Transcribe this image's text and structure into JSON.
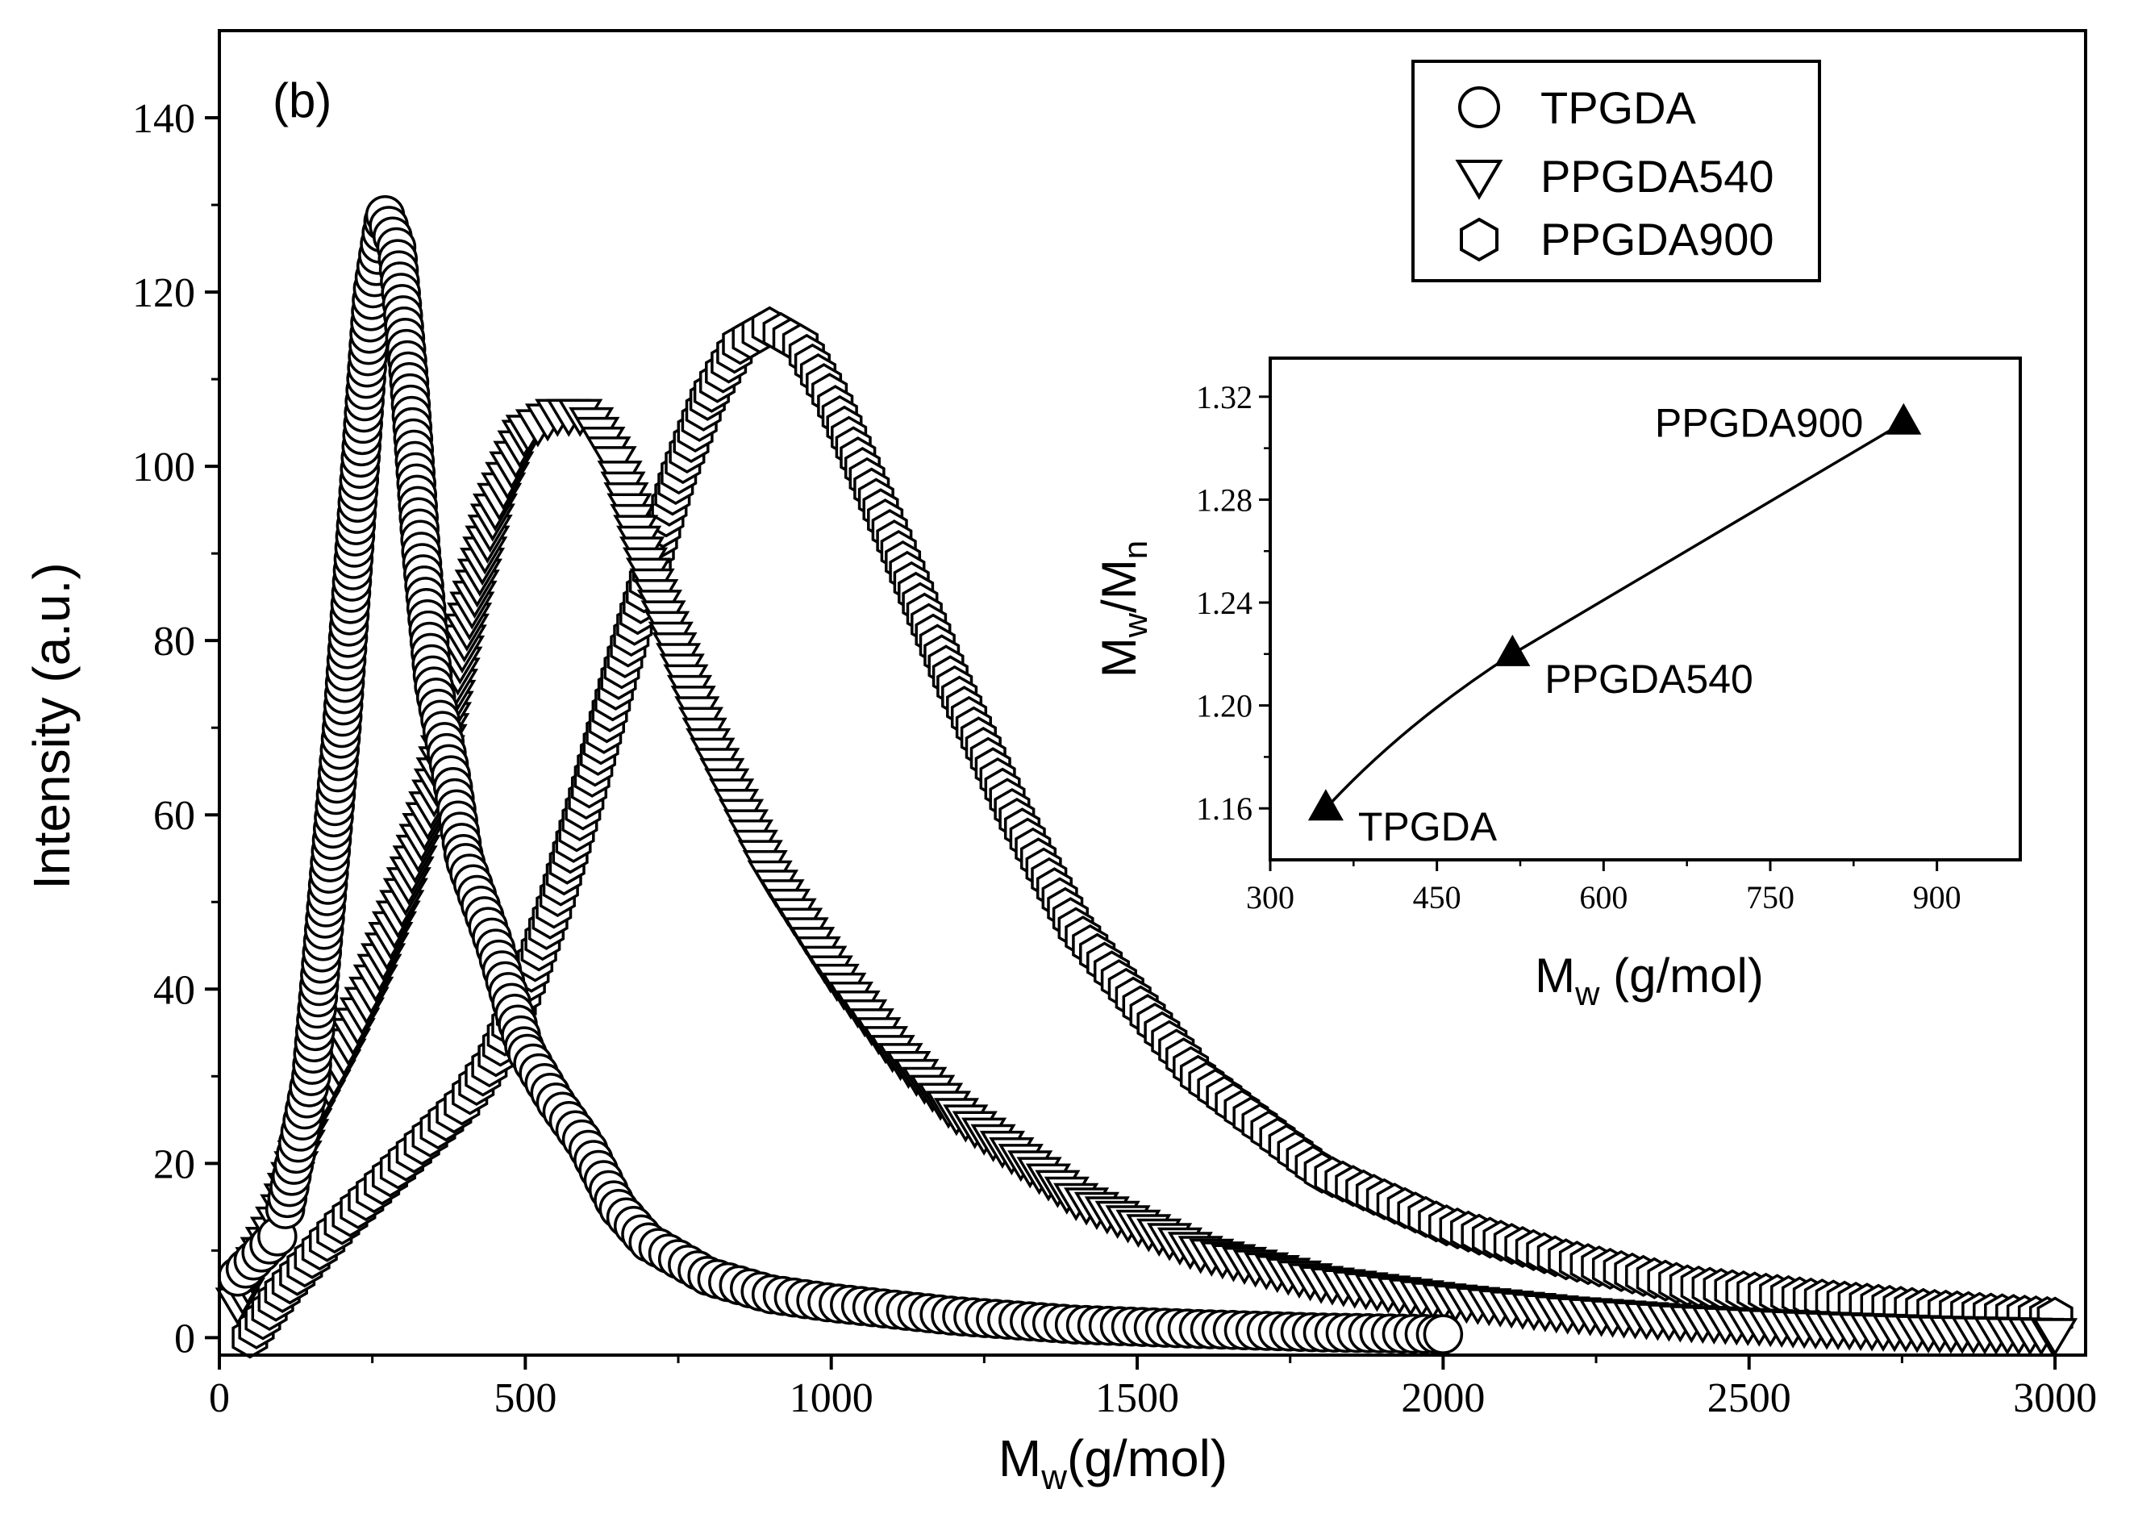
{
  "chart_data": [
    {
      "type": "scatter",
      "panel_label": "(b)",
      "xlabel": {
        "main": "M",
        "sub": "w",
        "rest": "(g/mol)"
      },
      "ylabel": "Intensity (a.u.)",
      "xlim": [
        0,
        3050
      ],
      "ylim": [
        -2,
        150
      ],
      "xticks": [
        "0",
        "500",
        "1000",
        "1500",
        "2000",
        "2500",
        "3000"
      ],
      "yticks": [
        "0",
        "20",
        "40",
        "60",
        "80",
        "100",
        "120",
        "140"
      ],
      "legend": {
        "position": "top-right",
        "entries": [
          {
            "label": "TPGDA",
            "marker": "circle"
          },
          {
            "label": "PPGDA540",
            "marker": "triangle-down"
          },
          {
            "label": "PPGDA900",
            "marker": "hexagon"
          }
        ]
      },
      "series": [
        {
          "name": "TPGDA",
          "marker": "circle",
          "x": [
            30,
            100,
            150,
            200,
            230,
            250,
            270,
            290,
            310,
            330,
            350,
            380,
            400,
            450,
            500,
            550,
            600,
            650,
            700,
            800,
            900,
            1000,
            1200,
            1400,
            1600,
            1800,
            2000
          ],
          "values": [
            7,
            12,
            30,
            70,
            100,
            120,
            129,
            125,
            110,
            90,
            75,
            64,
            55,
            45,
            33,
            27,
            22,
            15,
            11,
            7,
            5,
            4,
            2.5,
            1.5,
            1,
            0.6,
            0.4
          ]
        },
        {
          "name": "PPGDA540",
          "marker": "triangle-down",
          "x": [
            30,
            100,
            150,
            200,
            250,
            300,
            350,
            400,
            450,
            500,
            550,
            600,
            650,
            700,
            750,
            800,
            900,
            1000,
            1100,
            1200,
            1400,
            1600,
            1800,
            2000,
            2200,
            2400,
            2600,
            2800,
            3000
          ],
          "values": [
            4,
            14,
            25,
            32,
            40,
            50,
            62,
            80,
            95,
            104,
            106,
            106,
            100,
            88,
            78,
            68,
            53,
            42,
            33,
            26,
            16,
            10,
            6.5,
            4.5,
            3,
            2,
            1.3,
            0.8,
            0.5
          ]
        },
        {
          "name": "PPGDA900",
          "marker": "hexagon",
          "x": [
            50,
            100,
            200,
            300,
            400,
            450,
            500,
            550,
            600,
            650,
            700,
            750,
            800,
            850,
            900,
            950,
            1000,
            1100,
            1200,
            1300,
            1400,
            1600,
            1800,
            2000,
            2200,
            2400,
            2600,
            2800,
            3000
          ],
          "values": [
            0,
            5,
            13,
            20,
            27,
            32,
            40,
            50,
            62,
            75,
            87,
            99,
            108,
            114,
            116,
            114,
            108,
            92,
            75,
            60,
            47,
            30,
            19,
            13,
            9,
            6,
            4.5,
            3.2,
            2.3
          ]
        }
      ]
    },
    {
      "type": "line",
      "xlabel": {
        "main": "M",
        "sub": "w",
        "rest": " (g/mol)"
      },
      "ylabel": {
        "a": "M",
        "a_sub": "w",
        "sep": "/M",
        "b_sub": "n"
      },
      "xlim": [
        300,
        975
      ],
      "ylim": [
        1.14,
        1.335
      ],
      "xticks": [
        "300",
        "450",
        "600",
        "750",
        "900"
      ],
      "yticks": [
        "1.16",
        "1.20",
        "1.24",
        "1.28",
        "1.32"
      ],
      "series": [
        {
          "name": "Mw/Mn",
          "marker": "triangle-up",
          "x": [
            350,
            518,
            870
          ],
          "values": [
            1.16,
            1.22,
            1.31
          ],
          "labels": [
            "TPGDA",
            "PPGDA540",
            "PPGDA900"
          ]
        }
      ]
    }
  ]
}
